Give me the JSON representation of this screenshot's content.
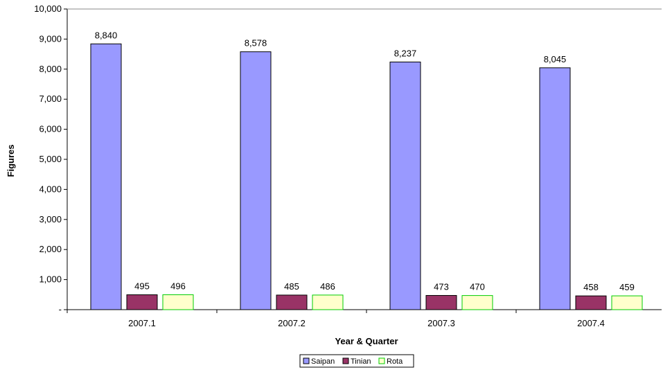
{
  "chart_data": {
    "type": "bar",
    "categories": [
      "2007.1",
      "2007.2",
      "2007.3",
      "2007.4"
    ],
    "series": [
      {
        "name": "Saipan",
        "color": "#9999ff",
        "values": [
          8840,
          8578,
          8237,
          8045
        ],
        "labels": [
          "8,840",
          "8,578",
          "8,237",
          "8,045"
        ]
      },
      {
        "name": "Tinian",
        "color": "#993366",
        "values": [
          495,
          485,
          473,
          458
        ],
        "labels": [
          "495",
          "485",
          "473",
          "458"
        ]
      },
      {
        "name": "Rota",
        "color": "#ffffcc",
        "stroke": "#00cc00",
        "values": [
          496,
          486,
          470,
          459
        ],
        "labels": [
          "496",
          "486",
          "470",
          "459"
        ]
      }
    ],
    "title": "",
    "xlabel": "Year & Quarter",
    "ylabel": "Figures",
    "ylim": [
      0,
      10000
    ],
    "yticks": [
      0,
      1000,
      2000,
      3000,
      4000,
      5000,
      6000,
      7000,
      8000,
      9000,
      10000
    ],
    "ytick_labels": [
      "-",
      "1,000",
      "2,000",
      "3,000",
      "4,000",
      "5,000",
      "6,000",
      "7,000",
      "8,000",
      "9,000",
      "10,000"
    ],
    "grid": false,
    "legend_position": "bottom-center"
  }
}
